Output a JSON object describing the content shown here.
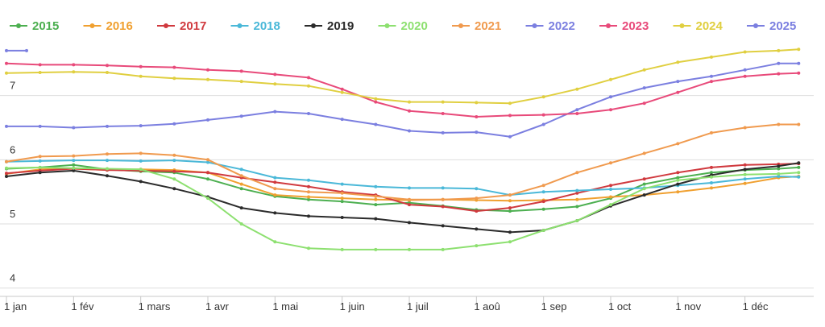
{
  "chart_data": {
    "type": "line",
    "title": "",
    "xlabel": "",
    "ylabel": "",
    "x_ticks": [
      "1 jan",
      "1 fév",
      "1 mars",
      "1 avr",
      "1 mai",
      "1 juin",
      "1 juil",
      "1 aoû",
      "1 sep",
      "1 oct",
      "1 nov",
      "1 déc"
    ],
    "month_index_range": [
      0,
      12
    ],
    "ylim": [
      3.87,
      7.95
    ],
    "y_ticks": [
      4,
      5,
      6,
      7
    ],
    "grid": "horizontal",
    "legend": "top",
    "series": [
      {
        "name": "2015",
        "color": "#4caf50",
        "points": [
          [
            0,
            5.86
          ],
          [
            0.5,
            5.88
          ],
          [
            1,
            5.92
          ],
          [
            1.5,
            5.85
          ],
          [
            2,
            5.82
          ],
          [
            2.5,
            5.8
          ],
          [
            3,
            5.7
          ],
          [
            3.5,
            5.55
          ],
          [
            4,
            5.43
          ],
          [
            4.5,
            5.38
          ],
          [
            5,
            5.35
          ],
          [
            5.5,
            5.3
          ],
          [
            6,
            5.33
          ],
          [
            6.5,
            5.28
          ],
          [
            7,
            5.22
          ],
          [
            7.5,
            5.2
          ],
          [
            8,
            5.23
          ],
          [
            8.5,
            5.27
          ],
          [
            9,
            5.4
          ],
          [
            9.5,
            5.62
          ],
          [
            10,
            5.72
          ],
          [
            10.5,
            5.8
          ],
          [
            11,
            5.84
          ],
          [
            11.5,
            5.86
          ],
          [
            11.8,
            5.88
          ]
        ]
      },
      {
        "name": "2016",
        "color": "#f0a030",
        "points": [
          [
            0,
            5.78
          ],
          [
            0.5,
            5.85
          ],
          [
            1,
            5.86
          ],
          [
            1.5,
            5.84
          ],
          [
            2,
            5.85
          ],
          [
            2.5,
            5.84
          ],
          [
            3,
            5.8
          ],
          [
            3.5,
            5.62
          ],
          [
            4,
            5.45
          ],
          [
            4.5,
            5.42
          ],
          [
            5,
            5.4
          ],
          [
            5.5,
            5.38
          ],
          [
            6,
            5.37
          ],
          [
            6.5,
            5.38
          ],
          [
            7,
            5.37
          ],
          [
            7.5,
            5.36
          ],
          [
            8,
            5.37
          ],
          [
            8.5,
            5.38
          ],
          [
            9,
            5.42
          ],
          [
            9.5,
            5.45
          ],
          [
            10,
            5.5
          ],
          [
            10.5,
            5.56
          ],
          [
            11,
            5.63
          ],
          [
            11.5,
            5.72
          ],
          [
            11.8,
            5.74
          ]
        ]
      },
      {
        "name": "2017",
        "color": "#d0393e",
        "points": [
          [
            0,
            5.79
          ],
          [
            0.5,
            5.83
          ],
          [
            1,
            5.86
          ],
          [
            1.5,
            5.84
          ],
          [
            2,
            5.83
          ],
          [
            2.5,
            5.82
          ],
          [
            3,
            5.8
          ],
          [
            3.5,
            5.72
          ],
          [
            4,
            5.65
          ],
          [
            4.5,
            5.58
          ],
          [
            5,
            5.5
          ],
          [
            5.5,
            5.45
          ],
          [
            6,
            5.3
          ],
          [
            6.5,
            5.27
          ],
          [
            7,
            5.2
          ],
          [
            7.5,
            5.25
          ],
          [
            8,
            5.35
          ],
          [
            8.5,
            5.48
          ],
          [
            9,
            5.6
          ],
          [
            9.5,
            5.7
          ],
          [
            10,
            5.8
          ],
          [
            10.5,
            5.88
          ],
          [
            11,
            5.92
          ],
          [
            11.5,
            5.93
          ],
          [
            11.8,
            5.94
          ]
        ]
      },
      {
        "name": "2018",
        "color": "#4ab8d8",
        "points": [
          [
            0,
            5.97
          ],
          [
            0.5,
            5.98
          ],
          [
            1,
            5.99
          ],
          [
            1.5,
            5.99
          ],
          [
            2,
            5.98
          ],
          [
            2.5,
            5.99
          ],
          [
            3,
            5.96
          ],
          [
            3.5,
            5.85
          ],
          [
            4,
            5.72
          ],
          [
            4.5,
            5.68
          ],
          [
            5,
            5.62
          ],
          [
            5.5,
            5.58
          ],
          [
            6,
            5.56
          ],
          [
            6.5,
            5.56
          ],
          [
            7,
            5.55
          ],
          [
            7.5,
            5.45
          ],
          [
            8,
            5.5
          ],
          [
            8.5,
            5.52
          ],
          [
            9,
            5.54
          ],
          [
            9.5,
            5.56
          ],
          [
            10,
            5.6
          ],
          [
            10.5,
            5.64
          ],
          [
            11,
            5.7
          ],
          [
            11.5,
            5.74
          ],
          [
            11.8,
            5.73
          ]
        ]
      },
      {
        "name": "2019",
        "color": "#2b2b2b",
        "points": [
          [
            0,
            5.74
          ],
          [
            0.5,
            5.8
          ],
          [
            1,
            5.83
          ],
          [
            1.5,
            5.75
          ],
          [
            2,
            5.66
          ],
          [
            2.5,
            5.55
          ],
          [
            3,
            5.42
          ],
          [
            3.5,
            5.25
          ],
          [
            4,
            5.17
          ],
          [
            4.5,
            5.12
          ],
          [
            5,
            5.1
          ],
          [
            5.5,
            5.08
          ],
          [
            6,
            5.02
          ],
          [
            6.5,
            4.97
          ],
          [
            7,
            4.92
          ],
          [
            7.5,
            4.87
          ],
          [
            8,
            4.9
          ],
          [
            8.5,
            5.05
          ],
          [
            9,
            5.28
          ],
          [
            9.5,
            5.45
          ],
          [
            10,
            5.62
          ],
          [
            10.5,
            5.76
          ],
          [
            11,
            5.85
          ],
          [
            11.5,
            5.9
          ],
          [
            11.8,
            5.95
          ]
        ]
      },
      {
        "name": "2020",
        "color": "#8de070",
        "points": [
          [
            0,
            5.87
          ],
          [
            0.5,
            5.88
          ],
          [
            1,
            5.87
          ],
          [
            1.5,
            5.86
          ],
          [
            2,
            5.85
          ],
          [
            2.5,
            5.7
          ],
          [
            3,
            5.4
          ],
          [
            3.5,
            5.0
          ],
          [
            4,
            4.72
          ],
          [
            4.5,
            4.62
          ],
          [
            5,
            4.6
          ],
          [
            5.5,
            4.6
          ],
          [
            6,
            4.6
          ],
          [
            6.5,
            4.6
          ],
          [
            7,
            4.66
          ],
          [
            7.5,
            4.72
          ],
          [
            8,
            4.9
          ],
          [
            8.5,
            5.05
          ],
          [
            9,
            5.3
          ],
          [
            9.5,
            5.55
          ],
          [
            10,
            5.68
          ],
          [
            10.5,
            5.73
          ],
          [
            11,
            5.77
          ],
          [
            11.5,
            5.78
          ],
          [
            11.8,
            5.8
          ]
        ]
      },
      {
        "name": "2021",
        "color": "#f09a4e",
        "points": [
          [
            0,
            5.97
          ],
          [
            0.5,
            6.05
          ],
          [
            1,
            6.06
          ],
          [
            1.5,
            6.09
          ],
          [
            2,
            6.1
          ],
          [
            2.5,
            6.07
          ],
          [
            3,
            6.0
          ],
          [
            3.5,
            5.75
          ],
          [
            4,
            5.55
          ],
          [
            4.5,
            5.5
          ],
          [
            5,
            5.48
          ],
          [
            5.5,
            5.43
          ],
          [
            6,
            5.38
          ],
          [
            6.5,
            5.38
          ],
          [
            7,
            5.4
          ],
          [
            7.5,
            5.45
          ],
          [
            8,
            5.6
          ],
          [
            8.5,
            5.8
          ],
          [
            9,
            5.95
          ],
          [
            9.5,
            6.1
          ],
          [
            10,
            6.25
          ],
          [
            10.5,
            6.42
          ],
          [
            11,
            6.5
          ],
          [
            11.5,
            6.55
          ],
          [
            11.8,
            6.55
          ]
        ]
      },
      {
        "name": "2022",
        "color": "#7b7fe0",
        "points": [
          [
            0,
            6.52
          ],
          [
            0.5,
            6.52
          ],
          [
            1,
            6.5
          ],
          [
            1.5,
            6.52
          ],
          [
            2,
            6.53
          ],
          [
            2.5,
            6.56
          ],
          [
            3,
            6.62
          ],
          [
            3.5,
            6.68
          ],
          [
            4,
            6.75
          ],
          [
            4.5,
            6.72
          ],
          [
            5,
            6.63
          ],
          [
            5.5,
            6.55
          ],
          [
            6,
            6.45
          ],
          [
            6.5,
            6.42
          ],
          [
            7,
            6.43
          ],
          [
            7.5,
            6.36
          ],
          [
            8,
            6.55
          ],
          [
            8.5,
            6.78
          ],
          [
            9,
            6.98
          ],
          [
            9.5,
            7.12
          ],
          [
            10,
            7.22
          ],
          [
            10.5,
            7.3
          ],
          [
            11,
            7.4
          ],
          [
            11.5,
            7.5
          ],
          [
            11.8,
            7.5
          ]
        ]
      },
      {
        "name": "2023",
        "color": "#e84a7a",
        "points": [
          [
            0,
            7.5
          ],
          [
            0.5,
            7.48
          ],
          [
            1,
            7.48
          ],
          [
            1.5,
            7.47
          ],
          [
            2,
            7.45
          ],
          [
            2.5,
            7.44
          ],
          [
            3,
            7.4
          ],
          [
            3.5,
            7.38
          ],
          [
            4,
            7.33
          ],
          [
            4.5,
            7.28
          ],
          [
            5,
            7.1
          ],
          [
            5.5,
            6.9
          ],
          [
            6,
            6.76
          ],
          [
            6.5,
            6.72
          ],
          [
            7,
            6.67
          ],
          [
            7.5,
            6.69
          ],
          [
            8,
            6.7
          ],
          [
            8.5,
            6.72
          ],
          [
            9,
            6.78
          ],
          [
            9.5,
            6.88
          ],
          [
            10,
            7.05
          ],
          [
            10.5,
            7.22
          ],
          [
            11,
            7.3
          ],
          [
            11.5,
            7.34
          ],
          [
            11.8,
            7.35
          ]
        ]
      },
      {
        "name": "2024",
        "color": "#e0cf40",
        "points": [
          [
            0,
            7.35
          ],
          [
            0.5,
            7.36
          ],
          [
            1,
            7.37
          ],
          [
            1.5,
            7.36
          ],
          [
            2,
            7.3
          ],
          [
            2.5,
            7.27
          ],
          [
            3,
            7.25
          ],
          [
            3.5,
            7.22
          ],
          [
            4,
            7.18
          ],
          [
            4.5,
            7.15
          ],
          [
            5,
            7.05
          ],
          [
            5.5,
            6.95
          ],
          [
            6,
            6.9
          ],
          [
            6.5,
            6.9
          ],
          [
            7,
            6.89
          ],
          [
            7.5,
            6.88
          ],
          [
            8,
            6.98
          ],
          [
            8.5,
            7.1
          ],
          [
            9,
            7.25
          ],
          [
            9.5,
            7.4
          ],
          [
            10,
            7.52
          ],
          [
            10.5,
            7.6
          ],
          [
            11,
            7.68
          ],
          [
            11.5,
            7.7
          ],
          [
            11.8,
            7.72
          ]
        ]
      },
      {
        "name": "2025",
        "color": "#7b7fe0",
        "points": [
          [
            0,
            7.7
          ],
          [
            0.3,
            7.7
          ]
        ]
      }
    ]
  }
}
